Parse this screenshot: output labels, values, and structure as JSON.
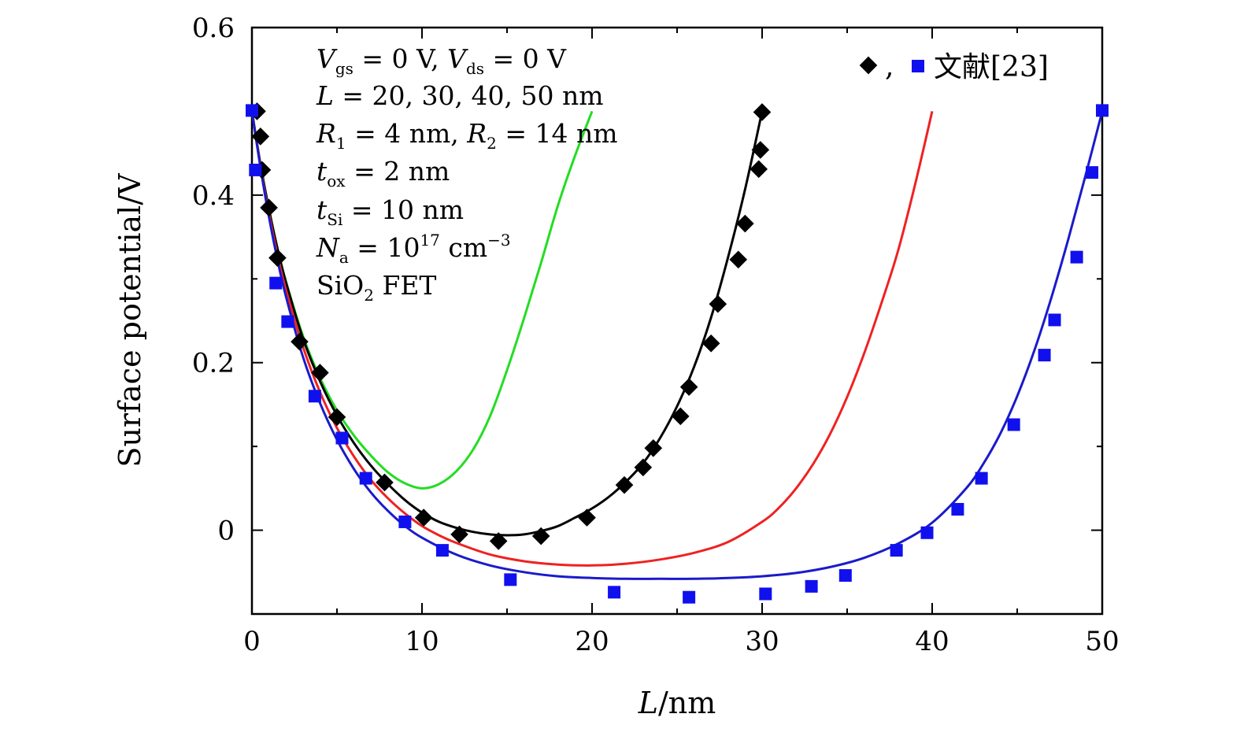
{
  "chart_data": {
    "type": "line",
    "xlabel_italic": "L",
    "xlabel_unit": "/nm",
    "ylabel": "Surface potential/V",
    "xlim": [
      0,
      50
    ],
    "ylim": [
      -0.1,
      0.6
    ],
    "x_ticks": [
      0,
      10,
      20,
      30,
      40,
      50
    ],
    "x_tick_labels": [
      "0",
      "10",
      "20",
      "30",
      "40",
      "50"
    ],
    "y_ticks": [
      0,
      0.2,
      0.4,
      0.6
    ],
    "y_tick_labels": [
      "0",
      "0.2",
      "0.4",
      "0.6"
    ],
    "grid": false,
    "annotations": [
      "Vgs = 0 V, Vds = 0 V",
      "L = 20, 30, 40, 50 nm",
      "R1 = 4 nm, R2 = 14 nm",
      "tox = 2 nm",
      "tSi = 10 nm",
      "Na = 10^17 cm^-3",
      "SiO2 FET"
    ],
    "legend": {
      "placement": "top-right",
      "separator": ",",
      "label": "文献[23]"
    },
    "series": [
      {
        "kind": "line",
        "color": "#22dd22",
        "x": [
          0,
          0.5,
          1,
          1.5,
          2,
          3,
          4,
          5,
          6,
          7,
          8,
          9,
          10,
          11,
          12,
          13,
          14,
          15,
          16,
          17,
          18,
          19,
          20
        ],
        "y": [
          0.5,
          0.437,
          0.384,
          0.337,
          0.297,
          0.232,
          0.182,
          0.143,
          0.113,
          0.089,
          0.069,
          0.056,
          0.05,
          0.055,
          0.07,
          0.096,
          0.136,
          0.191,
          0.253,
          0.319,
          0.388,
          0.447,
          0.5
        ]
      },
      {
        "kind": "line",
        "color": "#000000",
        "x": [
          0,
          0.5,
          1,
          1.5,
          2,
          3,
          4,
          5,
          6,
          7,
          8,
          9,
          10,
          11,
          12,
          13,
          14,
          15,
          16,
          17,
          18,
          19,
          20,
          21,
          22,
          23,
          24,
          25,
          26,
          27,
          28,
          29,
          30
        ],
        "y": [
          0.5,
          0.437,
          0.383,
          0.336,
          0.296,
          0.229,
          0.178,
          0.137,
          0.104,
          0.077,
          0.055,
          0.036,
          0.021,
          0.01,
          0.003,
          -0.002,
          -0.005,
          -0.006,
          -0.005,
          -0.001,
          0.005,
          0.015,
          0.026,
          0.04,
          0.058,
          0.08,
          0.11,
          0.148,
          0.195,
          0.254,
          0.326,
          0.407,
          0.5
        ]
      },
      {
        "kind": "line",
        "color": "#ee2222",
        "x": [
          0,
          0.5,
          1,
          1.5,
          2,
          3,
          4,
          5,
          6,
          7,
          8,
          9,
          10,
          11,
          12,
          14,
          16,
          18,
          20,
          22,
          24,
          26,
          28,
          30,
          31,
          32,
          33,
          34,
          35,
          36,
          37,
          38,
          39,
          40
        ],
        "y": [
          0.5,
          0.435,
          0.378,
          0.329,
          0.287,
          0.219,
          0.165,
          0.122,
          0.088,
          0.06,
          0.038,
          0.02,
          0.005,
          -0.006,
          -0.015,
          -0.029,
          -0.037,
          -0.041,
          -0.042,
          -0.04,
          -0.035,
          -0.027,
          -0.014,
          0.01,
          0.027,
          0.05,
          0.079,
          0.115,
          0.159,
          0.211,
          0.27,
          0.334,
          0.413,
          0.5
        ]
      },
      {
        "kind": "line",
        "color": "#1a1acc",
        "x": [
          0,
          0.5,
          1,
          1.5,
          2,
          3,
          4,
          5,
          6,
          7,
          8,
          9,
          10,
          12,
          14,
          16,
          18,
          20,
          22,
          24,
          26,
          28,
          30,
          32,
          34,
          36,
          38,
          40,
          42,
          43,
          44,
          45,
          46,
          47,
          48,
          49,
          50
        ],
        "y": [
          0.5,
          0.433,
          0.374,
          0.323,
          0.279,
          0.207,
          0.152,
          0.108,
          0.073,
          0.045,
          0.023,
          0.005,
          -0.009,
          -0.029,
          -0.042,
          -0.05,
          -0.055,
          -0.057,
          -0.058,
          -0.058,
          -0.058,
          -0.057,
          -0.055,
          -0.051,
          -0.044,
          -0.033,
          -0.016,
          0.009,
          0.05,
          0.079,
          0.115,
          0.16,
          0.214,
          0.277,
          0.347,
          0.422,
          0.5
        ]
      },
      {
        "kind": "markers",
        "marker": "diamond",
        "color": "#000000",
        "x": [
          0.3,
          0.5,
          0.6,
          1.0,
          1.5,
          2.8,
          4.0,
          5.0,
          7.8,
          10.1,
          12.2,
          14.5,
          17.0,
          19.7,
          21.9,
          23.0,
          23.6,
          25.2,
          25.7,
          27.0,
          27.4,
          28.6,
          29.0,
          29.8,
          29.9,
          30.0
        ],
        "y": [
          0.5,
          0.47,
          0.43,
          0.385,
          0.325,
          0.225,
          0.188,
          0.135,
          0.057,
          0.015,
          -0.005,
          -0.013,
          -0.007,
          0.015,
          0.054,
          0.075,
          0.098,
          0.136,
          0.171,
          0.223,
          0.27,
          0.323,
          0.366,
          0.431,
          0.454,
          0.499
        ]
      },
      {
        "kind": "markers",
        "marker": "square",
        "color": "#1010ee",
        "x": [
          0.0,
          0.2,
          1.4,
          2.1,
          3.7,
          5.3,
          6.7,
          9.0,
          11.2,
          15.2,
          21.3,
          25.7,
          30.2,
          32.9,
          34.9,
          37.9,
          39.7,
          41.5,
          42.9,
          44.8,
          46.6,
          47.2,
          48.5,
          49.4,
          50.0
        ],
        "y": [
          0.501,
          0.43,
          0.295,
          0.249,
          0.16,
          0.11,
          0.062,
          0.01,
          -0.024,
          -0.059,
          -0.074,
          -0.08,
          -0.076,
          -0.067,
          -0.054,
          -0.024,
          -0.003,
          0.025,
          0.062,
          0.126,
          0.209,
          0.251,
          0.326,
          0.427,
          0.501
        ]
      }
    ]
  }
}
